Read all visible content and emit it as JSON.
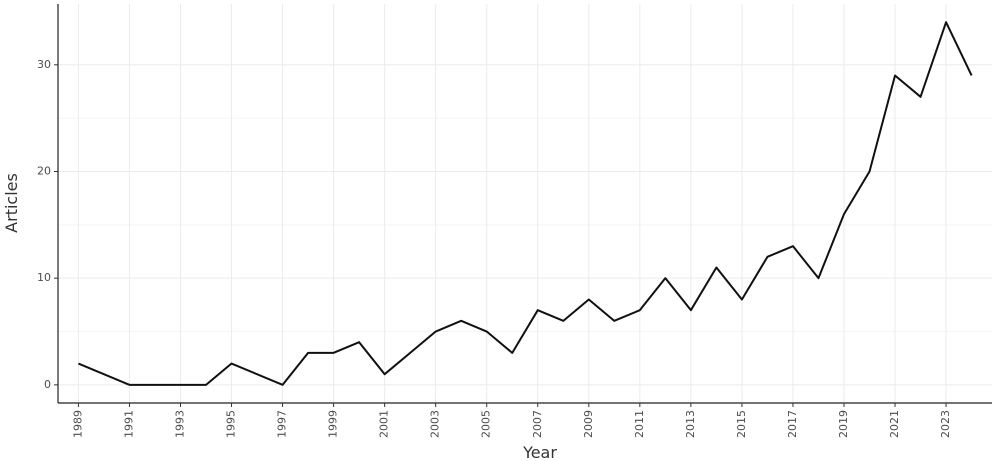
{
  "chart_data": {
    "type": "line",
    "title": "",
    "xlabel": "Year",
    "ylabel": "Articles",
    "xlim": [
      1988.2,
      2024.8
    ],
    "ylim": [
      -1.7,
      35.7
    ],
    "grid": true,
    "legend": "none",
    "x_ticks": [
      1989,
      1991,
      1993,
      1995,
      1997,
      1999,
      2001,
      2003,
      2005,
      2007,
      2009,
      2011,
      2013,
      2015,
      2017,
      2019,
      2021,
      2023
    ],
    "y_ticks": [
      0,
      10,
      20,
      30
    ],
    "series": [
      {
        "x": [
          1989,
          1991,
          1992,
          1993,
          1994,
          1995,
          1997,
          1998,
          1999,
          2000,
          2001,
          2002,
          2003,
          2004,
          2005,
          2006,
          2007,
          2008,
          2009,
          2010,
          2011,
          2012,
          2013,
          2014,
          2015,
          2016,
          2017,
          2018,
          2019,
          2020,
          2021,
          2022,
          2023,
          2024
        ],
        "values": [
          2,
          0,
          0,
          0,
          0,
          2,
          0,
          3,
          3,
          4,
          1,
          3,
          5,
          6,
          5,
          3,
          7,
          6,
          8,
          6,
          7,
          10,
          7,
          11,
          8,
          12,
          13,
          10,
          16,
          20,
          29,
          27,
          34,
          29
        ]
      }
    ],
    "line_color": "#111111"
  }
}
